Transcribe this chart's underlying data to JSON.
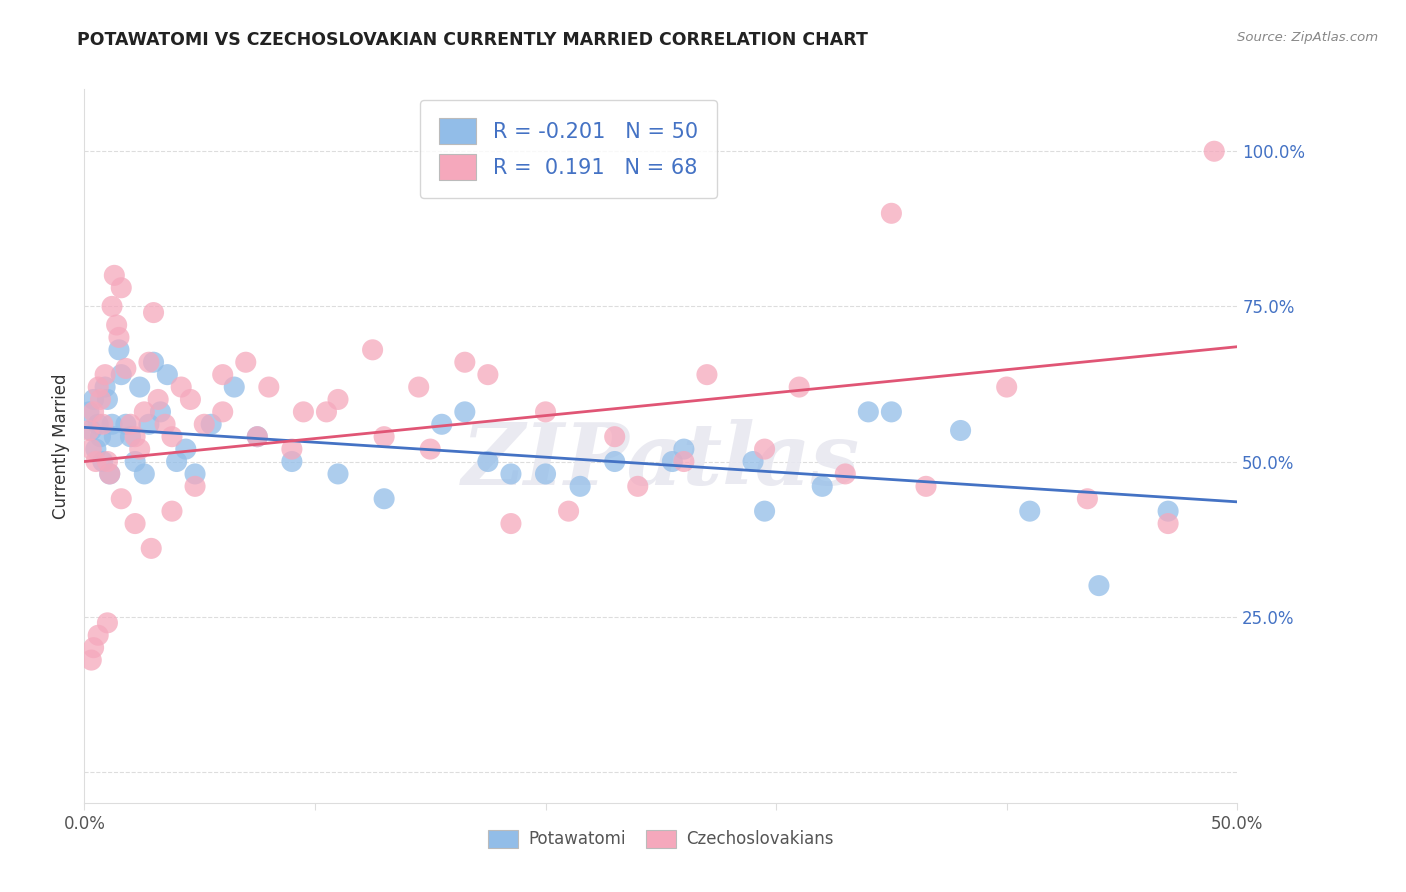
{
  "title": "POTAWATOMI VS CZECHOSLOVAKIAN CURRENTLY MARRIED CORRELATION CHART",
  "source": "Source: ZipAtlas.com",
  "ylabel": "Currently Married",
  "xlim": [
    0.0,
    0.5
  ],
  "ylim": [
    -0.05,
    1.1
  ],
  "yticks": [
    0.0,
    0.25,
    0.5,
    0.75,
    1.0
  ],
  "ytick_labels": [
    "",
    "25.0%",
    "50.0%",
    "75.0%",
    "100.0%"
  ],
  "watermark": "ZIPatlas",
  "legend_r_blue": "-0.201",
  "legend_n_blue": "50",
  "legend_r_pink": " 0.191",
  "legend_n_pink": "68",
  "blue_color": "#92BDE8",
  "pink_color": "#F5A8BC",
  "line_blue": "#4472C4",
  "line_pink": "#E05575",
  "grid_color": "#DDDDDD",
  "title_color": "#222222",
  "source_color": "#888888",
  "tick_color_y": "#4472C4",
  "tick_color_x": "#555555",
  "watermark_color": "#E8E8F0",
  "potawatomi_label": "Potawatomi",
  "czech_label": "Czechoslovakians",
  "blue_x": [
    0.002,
    0.003,
    0.004,
    0.005,
    0.006,
    0.007,
    0.008,
    0.009,
    0.01,
    0.011,
    0.012,
    0.013,
    0.015,
    0.016,
    0.018,
    0.02,
    0.022,
    0.024,
    0.026,
    0.028,
    0.03,
    0.033,
    0.036,
    0.04,
    0.044,
    0.048,
    0.055,
    0.065,
    0.075,
    0.09,
    0.11,
    0.13,
    0.155,
    0.175,
    0.2,
    0.23,
    0.26,
    0.29,
    0.32,
    0.35,
    0.38,
    0.41,
    0.44,
    0.47,
    0.34,
    0.295,
    0.255,
    0.215,
    0.185,
    0.165
  ],
  "blue_y": [
    0.58,
    0.55,
    0.6,
    0.52,
    0.56,
    0.54,
    0.5,
    0.62,
    0.6,
    0.48,
    0.56,
    0.54,
    0.68,
    0.64,
    0.56,
    0.54,
    0.5,
    0.62,
    0.48,
    0.56,
    0.66,
    0.58,
    0.64,
    0.5,
    0.52,
    0.48,
    0.56,
    0.62,
    0.54,
    0.5,
    0.48,
    0.44,
    0.56,
    0.5,
    0.48,
    0.5,
    0.52,
    0.5,
    0.46,
    0.58,
    0.55,
    0.42,
    0.3,
    0.42,
    0.58,
    0.42,
    0.5,
    0.46,
    0.48,
    0.58
  ],
  "pink_x": [
    0.002,
    0.003,
    0.004,
    0.005,
    0.006,
    0.007,
    0.008,
    0.009,
    0.01,
    0.011,
    0.012,
    0.013,
    0.014,
    0.015,
    0.016,
    0.018,
    0.02,
    0.022,
    0.024,
    0.026,
    0.028,
    0.03,
    0.032,
    0.035,
    0.038,
    0.042,
    0.046,
    0.052,
    0.06,
    0.07,
    0.08,
    0.095,
    0.11,
    0.13,
    0.15,
    0.175,
    0.2,
    0.23,
    0.26,
    0.295,
    0.33,
    0.365,
    0.4,
    0.435,
    0.47,
    0.35,
    0.31,
    0.27,
    0.24,
    0.21,
    0.185,
    0.165,
    0.145,
    0.125,
    0.105,
    0.09,
    0.075,
    0.06,
    0.048,
    0.038,
    0.029,
    0.022,
    0.016,
    0.01,
    0.006,
    0.004,
    0.003,
    0.49
  ],
  "pink_y": [
    0.55,
    0.52,
    0.58,
    0.5,
    0.62,
    0.6,
    0.56,
    0.64,
    0.5,
    0.48,
    0.75,
    0.8,
    0.72,
    0.7,
    0.78,
    0.65,
    0.56,
    0.54,
    0.52,
    0.58,
    0.66,
    0.74,
    0.6,
    0.56,
    0.54,
    0.62,
    0.6,
    0.56,
    0.58,
    0.66,
    0.62,
    0.58,
    0.6,
    0.54,
    0.52,
    0.64,
    0.58,
    0.54,
    0.5,
    0.52,
    0.48,
    0.46,
    0.62,
    0.44,
    0.4,
    0.9,
    0.62,
    0.64,
    0.46,
    0.42,
    0.4,
    0.66,
    0.62,
    0.68,
    0.58,
    0.52,
    0.54,
    0.64,
    0.46,
    0.42,
    0.36,
    0.4,
    0.44,
    0.24,
    0.22,
    0.2,
    0.18,
    1.0
  ]
}
